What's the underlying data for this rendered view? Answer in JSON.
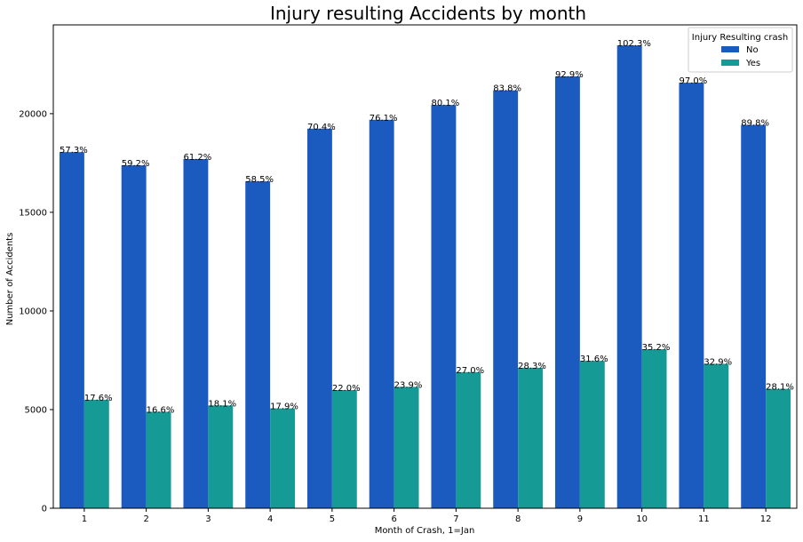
{
  "chart_data": {
    "type": "bar",
    "title": "Injury resulting Accidents by month",
    "xlabel": "Month of Crash, 1=Jan",
    "ylabel": "Number of Accidents",
    "categories": [
      "1",
      "2",
      "3",
      "4",
      "5",
      "6",
      "7",
      "8",
      "9",
      "10",
      "11",
      "12"
    ],
    "ylim": [
      0,
      24500
    ],
    "yticks": [
      0,
      5000,
      10000,
      15000,
      20000
    ],
    "ytick_labels": [
      "0",
      "5000",
      "10000",
      "15000",
      "20000"
    ],
    "legend": {
      "title": "Injury Resulting crash",
      "placement": "top-right"
    },
    "series": [
      {
        "name": "No",
        "color": "#1b5bbf",
        "values": [
          18050,
          17380,
          17700,
          16570,
          19240,
          19690,
          20440,
          21180,
          21890,
          23460,
          21570,
          19430
        ],
        "labels": [
          "57.3%",
          "59.2%",
          "61.2%",
          "58.5%",
          "70.4%",
          "76.1%",
          "80.1%",
          "83.8%",
          "92.9%",
          "102.3%",
          "97.0%",
          "89.8%"
        ]
      },
      {
        "name": "Yes",
        "color": "#169a96",
        "values": [
          5500,
          4890,
          5210,
          5060,
          5990,
          6150,
          6900,
          7120,
          7470,
          8060,
          7320,
          6050
        ],
        "labels": [
          "17.6%",
          "16.6%",
          "18.1%",
          "17.9%",
          "22.0%",
          "23.9%",
          "27.0%",
          "28.3%",
          "31.6%",
          "35.2%",
          "32.9%",
          "28.1%"
        ]
      }
    ]
  }
}
